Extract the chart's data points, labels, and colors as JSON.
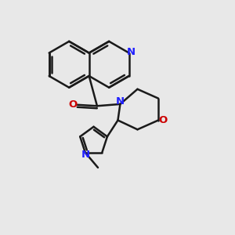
{
  "bg_color": "#e8e8e8",
  "bond_color": "#1a1a1a",
  "n_color": "#2020ff",
  "o_color": "#cc0000",
  "bond_width": 1.8,
  "figsize": [
    3.0,
    3.0
  ],
  "dpi": 100,
  "xlim": [
    0,
    10
  ],
  "ylim": [
    0,
    10
  ]
}
